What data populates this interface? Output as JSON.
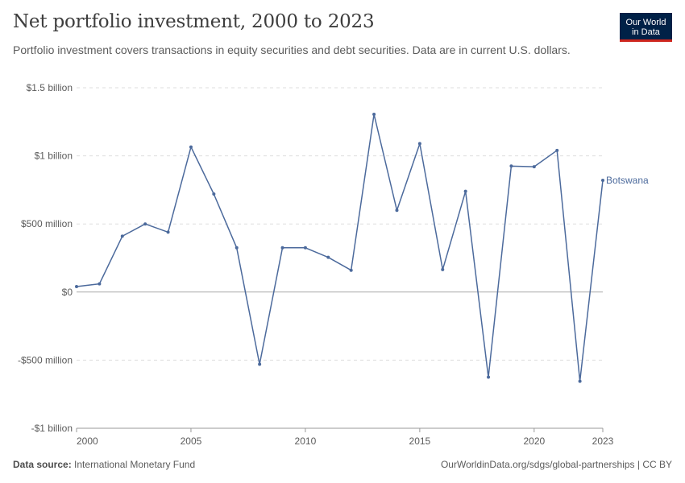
{
  "header": {
    "title": "Net portfolio investment, 2000 to 2023",
    "subtitle": "Portfolio investment covers transactions in equity securities and debt securities. Data are in current U.S. dollars."
  },
  "logo": {
    "line1": "Our World",
    "line2": "in Data"
  },
  "footer": {
    "source_label": "Data source:",
    "source_value": "International Monetary Fund",
    "link": "OurWorldinData.org/sdgs/global-partnerships | CC BY"
  },
  "colors": {
    "series": "#4c6a9c",
    "grid": "#dddddd",
    "zero": "#aaaaaa",
    "axis": "#999999"
  },
  "chart_data": {
    "type": "line",
    "title": "Net portfolio investment, 2000 to 2023",
    "xlabel": "",
    "ylabel": "",
    "xlim": [
      2000,
      2023
    ],
    "ylim": [
      -1000000000,
      1500000000
    ],
    "grid": "horizontal dashed",
    "y_ticks": [
      {
        "value": 1500000000,
        "label": "$1.5 billion"
      },
      {
        "value": 1000000000,
        "label": "$1 billion"
      },
      {
        "value": 500000000,
        "label": "$500 million"
      },
      {
        "value": 0,
        "label": "$0"
      },
      {
        "value": -500000000,
        "label": "-$500 million"
      },
      {
        "value": -1000000000,
        "label": "-$1 billion"
      }
    ],
    "x_ticks": [
      {
        "value": 2000,
        "label": "2000"
      },
      {
        "value": 2005,
        "label": "2005"
      },
      {
        "value": 2010,
        "label": "2010"
      },
      {
        "value": 2015,
        "label": "2015"
      },
      {
        "value": 2020,
        "label": "2020"
      },
      {
        "value": 2023,
        "label": "2023"
      }
    ],
    "series": [
      {
        "name": "Botswana",
        "color": "#4c6a9c",
        "x": [
          2000,
          2001,
          2002,
          2003,
          2004,
          2005,
          2006,
          2007,
          2008,
          2009,
          2010,
          2011,
          2012,
          2013,
          2014,
          2015,
          2016,
          2017,
          2018,
          2019,
          2020,
          2021,
          2022,
          2023
        ],
        "y": [
          40000000,
          60000000,
          410000000,
          500000000,
          440000000,
          1065000000,
          720000000,
          325000000,
          -530000000,
          325000000,
          325000000,
          255000000,
          160000000,
          1305000000,
          600000000,
          1090000000,
          165000000,
          740000000,
          -625000000,
          925000000,
          920000000,
          1040000000,
          -655000000,
          820000000
        ]
      }
    ]
  }
}
